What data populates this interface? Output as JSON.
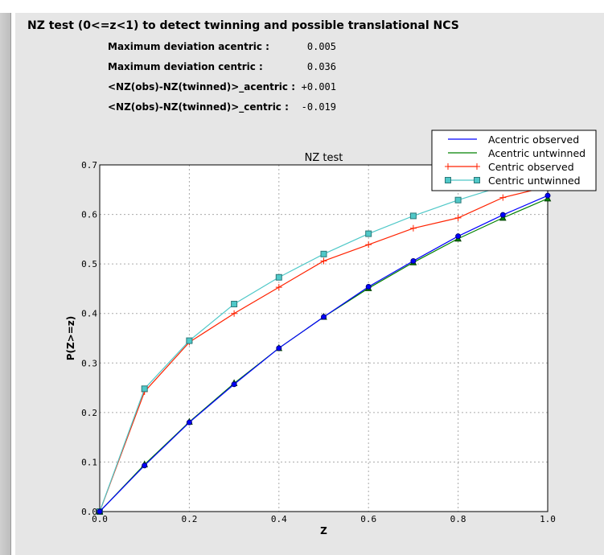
{
  "header": {
    "title": "NZ test (0<=z<1) to detect twinning and possible translational NCS"
  },
  "stats": [
    {
      "label": "Maximum deviation acentric :",
      "value": "0.005"
    },
    {
      "label": "Maximum deviation centric :",
      "value": "0.036"
    },
    {
      "label": "<NZ(obs)-NZ(twinned)>_acentric :",
      "value": "+0.001"
    },
    {
      "label": "<NZ(obs)-NZ(twinned)>_centric :",
      "value": "-0.019"
    }
  ],
  "chart_data": {
    "type": "line",
    "title": "NZ test",
    "xlabel": "Z",
    "ylabel": "P(Z>=z)",
    "xlim": [
      0,
      1
    ],
    "ylim": [
      0,
      0.7
    ],
    "xticks": [
      "0.0",
      "0.2",
      "0.4",
      "0.6",
      "0.8",
      "1.0"
    ],
    "yticks": [
      "0.0",
      "0.1",
      "0.2",
      "0.3",
      "0.4",
      "0.5",
      "0.6",
      "0.7"
    ],
    "grid": true,
    "legend_position": "top-right",
    "x": [
      0,
      0.1,
      0.2,
      0.3,
      0.4,
      0.5,
      0.6,
      0.7,
      0.8,
      0.9,
      1.0
    ],
    "series": [
      {
        "name": "Acentric observed",
        "color": "#0000ff",
        "marker": "circle",
        "values": [
          0,
          0.093,
          0.18,
          0.257,
          0.33,
          0.393,
          0.454,
          0.506,
          0.556,
          0.599,
          0.638
        ]
      },
      {
        "name": "Acentric untwinned",
        "color": "#008000",
        "marker": "triangle",
        "values": [
          0,
          0.095,
          0.181,
          0.259,
          0.33,
          0.393,
          0.451,
          0.503,
          0.551,
          0.593,
          0.632
        ]
      },
      {
        "name": "Centric observed",
        "color": "#ff2200",
        "marker": "plus",
        "values": [
          0,
          0.242,
          0.342,
          0.4,
          0.453,
          0.506,
          0.539,
          0.572,
          0.593,
          0.634,
          0.656
        ]
      },
      {
        "name": "Centric untwinned",
        "color": "#4fc8c8",
        "marker": "square",
        "values": [
          0,
          0.248,
          0.345,
          0.419,
          0.473,
          0.52,
          0.561,
          0.597,
          0.629,
          0.657,
          0.683
        ]
      }
    ]
  }
}
